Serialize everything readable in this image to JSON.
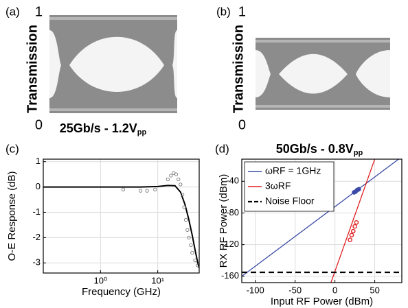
{
  "chart_data": [
    {
      "type": "eye",
      "panel": "(a)",
      "ylabel": "Transmission",
      "ylim": [
        0,
        1
      ],
      "yticks": [
        0,
        1
      ],
      "caption": "25Gb/s - 1.2V",
      "caption_sub": "pp"
    },
    {
      "type": "eye",
      "panel": "(b)",
      "ylabel": "Transmission",
      "ylim": [
        0,
        1
      ],
      "yticks": [
        0,
        1
      ],
      "caption": "50Gb/s - 0.8V",
      "caption_sub": "pp"
    },
    {
      "type": "line",
      "panel": "(c)",
      "xlabel": "Frequency (GHz)",
      "ylabel": "O-E Response (dB)",
      "xscale": "log",
      "xlim": [
        0.1,
        53
      ],
      "ylim": [
        -3.4,
        1.1
      ],
      "xticks": [
        {
          "value": 1,
          "label": "10⁰"
        },
        {
          "value": 10,
          "label": "10¹"
        }
      ],
      "yticks": [
        1,
        0,
        -1,
        -2,
        -3
      ],
      "grid": true,
      "series": [
        {
          "color": "#000000",
          "style": "line",
          "x": [
            0.1,
            1,
            5,
            10,
            15,
            20,
            25,
            30,
            35,
            40,
            45,
            50,
            53
          ],
          "values": [
            0,
            0,
            0,
            0.02,
            0.06,
            0.05,
            -0.2,
            -0.7,
            -1.3,
            -1.9,
            -2.5,
            -3.0,
            -3.2
          ]
        },
        {
          "color": "#777777",
          "style": "points",
          "x": [
            2.5,
            5,
            6.5,
            9,
            15,
            17,
            19,
            21,
            23,
            25,
            27,
            29,
            31,
            33,
            35,
            38,
            40,
            45,
            50
          ],
          "values": [
            -0.1,
            -0.15,
            -0.15,
            -0.1,
            0.3,
            0.45,
            0.55,
            0.5,
            0.3,
            0.1,
            -0.3,
            -0.8,
            -1.3,
            -1.7,
            -2.0,
            -2.3,
            -2.6,
            -2.9,
            -3.1
          ]
        }
      ]
    },
    {
      "type": "line",
      "panel": "(d)",
      "xlabel": "Input RF Power (dBm)",
      "ylabel": "RX RF Power (dBm)",
      "xscale": "linear",
      "xlim": [
        -117,
        84
      ],
      "ylim": [
        -168,
        -12
      ],
      "xticks": [
        -100,
        -50,
        0,
        50
      ],
      "yticks": [
        -40,
        -80,
        -120,
        -160
      ],
      "grid": true,
      "legend": "upper left",
      "series": [
        {
          "name": "ωRF = 1GHz",
          "color": "#3a4aa6",
          "style": "line",
          "x": [
            -117,
            80
          ],
          "values": [
            -160,
            -12
          ],
          "marker_x": [
            24,
            26,
            28,
            30
          ],
          "marker_values": [
            -54,
            -53,
            -51,
            -50
          ]
        },
        {
          "name": "3ωRF",
          "color": "#e02020",
          "style": "line",
          "x": [
            -5,
            50
          ],
          "values": [
            -168,
            -12
          ],
          "marker_x": [
            19,
            21,
            23,
            25,
            27
          ],
          "marker_values": [
            -114,
            -108,
            -103,
            -97,
            -92
          ]
        },
        {
          "name": "Noise Floor",
          "color": "#000000",
          "style": "dashed",
          "x": [
            -117,
            84
          ],
          "values": [
            -155,
            -155
          ]
        }
      ]
    }
  ]
}
